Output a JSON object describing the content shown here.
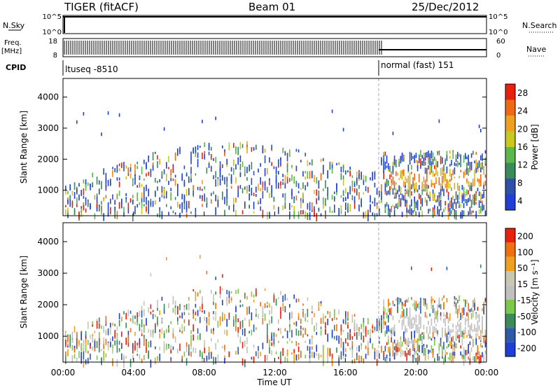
{
  "header": {
    "title": "TIGER (fitACF)",
    "beam": "Beam 01",
    "date": "25/Dec/2012"
  },
  "panels": {
    "nsky_label": "N.Sky",
    "nsky_ticks": [
      "10^5",
      "10^0"
    ],
    "nsearch_label": "N.Search",
    "nsearch_ticks": [
      "10^5",
      "10^0"
    ],
    "freq_label": "Freq.",
    "freq_unit": "[MHz]",
    "freq_ticks": [
      "18",
      "8"
    ],
    "nave_label": "Nave",
    "nave_ticks": [
      "60",
      "0"
    ],
    "cpid_label": "CPID",
    "cpid_segments": [
      "ltuseq -8510",
      "normal (fast) 151"
    ]
  },
  "colors": {
    "power": [
      "#1f3fd8",
      "#2f4fa8",
      "#3a8a5a",
      "#5cb84a",
      "#c8c820",
      "#f0a020",
      "#f06a14",
      "#e82010"
    ],
    "velocity": [
      "#1f3fd8",
      "#2f5aa8",
      "#3a8a5a",
      "#7cc84a",
      "#c0c0c0",
      "#c8c8b0",
      "#f0a020",
      "#f07010",
      "#e82010"
    ]
  },
  "chart_data": [
    {
      "type": "heatmap",
      "name": "Power",
      "ylabel": "Slant Range [km]",
      "colorbar_label": "Power [dB]",
      "colorbar_ticks": [
        "28",
        "24",
        "20",
        "16",
        "12",
        "8",
        "4"
      ],
      "ylim": [
        180,
        4600
      ],
      "yticks": [
        1000,
        2000,
        3000,
        4000
      ],
      "xlim": [
        0,
        24
      ],
      "xticks": [
        "00:00",
        "04:00",
        "08:00",
        "12:00",
        "16:00",
        "20:00",
        "00:00"
      ],
      "mode_change_hour": 18.1
    },
    {
      "type": "heatmap",
      "name": "Velocity",
      "ylabel": "Slant Range [km]",
      "xlabel": "Time UT",
      "colorbar_label": "Velocity [m s⁻¹]",
      "colorbar_ticks": [
        "200",
        "100",
        "50",
        "15",
        "-15",
        "-50",
        "-100",
        "-200"
      ],
      "ylim": [
        180,
        4600
      ],
      "yticks": [
        1000,
        2000,
        3000,
        4000
      ],
      "xlim": [
        0,
        24
      ],
      "xticks": [
        "00:00",
        "04:00",
        "08:00",
        "12:00",
        "16:00",
        "20:00",
        "00:00"
      ],
      "mode_change_hour": 18.1
    }
  ]
}
